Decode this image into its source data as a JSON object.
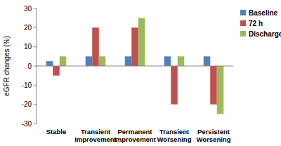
{
  "chart_data": {
    "type": "bar",
    "y_label": "eGFR changes (%)",
    "categories": [
      "Stable",
      "Transient Improvement",
      "Permanent Improvement",
      "Transient Worsening",
      "Persistent Worsening"
    ],
    "series": [
      {
        "name": "Baseline",
        "color": "#4f81bd",
        "values": [
          2.5,
          5,
          5,
          5,
          5
        ]
      },
      {
        "name": "72 h",
        "color": "#c0504d",
        "values": [
          -5,
          20,
          20,
          -20,
          -20
        ]
      },
      {
        "name": "Discharge",
        "color": "#9bbb59",
        "values": [
          5,
          5,
          25,
          5,
          -25
        ]
      }
    ],
    "ylim": [
      -30,
      30
    ],
    "yticks": [
      -30,
      -20,
      -10,
      0,
      10,
      20,
      30
    ],
    "grid": false,
    "legend": "right"
  }
}
